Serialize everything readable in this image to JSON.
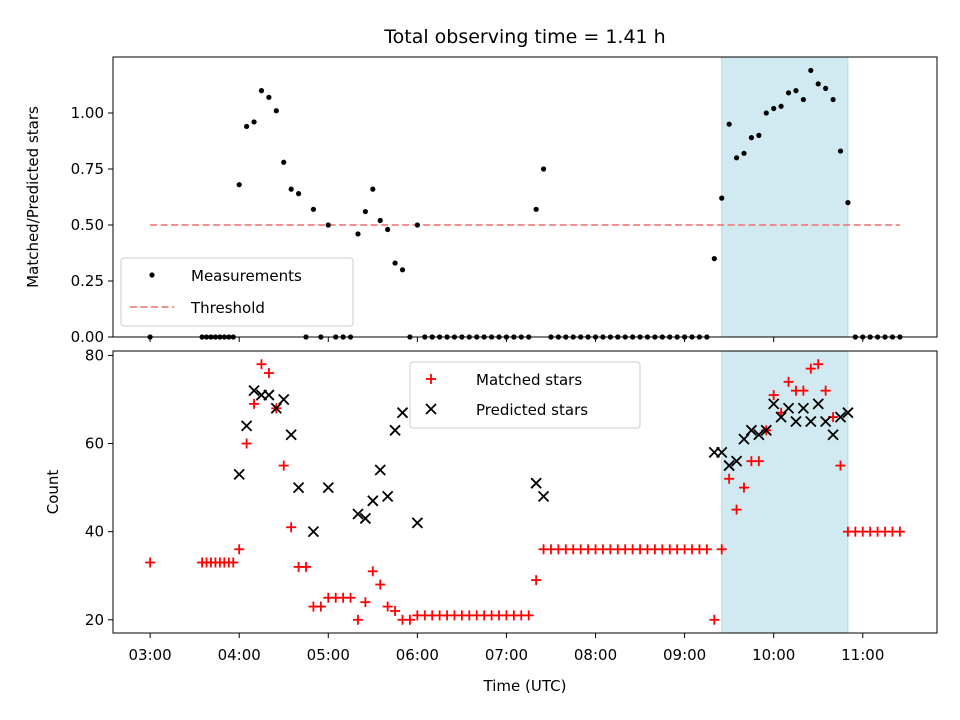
{
  "chart_data": [
    {
      "type": "scatter",
      "title": "Total observing time = 1.41 h",
      "xlabel": "",
      "ylabel": "Matched/Predicted stars",
      "ylim": [
        0,
        1.25
      ],
      "y_ticks": [
        "0.00",
        "0.25",
        "0.50",
        "0.75",
        "1.00"
      ],
      "highlight_span": [
        "09:25",
        "10:50"
      ],
      "highlight_color": "#d1e9f0",
      "legend_position": "lower-left",
      "threshold": {
        "name": "Threshold",
        "value": 0.5,
        "x_range": [
          "03:00",
          "11:25"
        ],
        "color": "#f08080"
      },
      "series": [
        {
          "name": "Measurements",
          "color": "#000000",
          "marker": "dot",
          "points": [
            [
              "03:00",
              0
            ],
            [
              "03:35",
              0
            ],
            [
              "03:38",
              0
            ],
            [
              "03:41",
              0
            ],
            [
              "03:44",
              0
            ],
            [
              "03:47",
              0
            ],
            [
              "03:50",
              0
            ],
            [
              "03:53",
              0
            ],
            [
              "03:56",
              0
            ],
            [
              "04:00",
              0.68
            ],
            [
              "04:05",
              0.94
            ],
            [
              "04:10",
              0.96
            ],
            [
              "04:15",
              1.1
            ],
            [
              "04:20",
              1.07
            ],
            [
              "04:25",
              1.01
            ],
            [
              "04:30",
              0.78
            ],
            [
              "04:35",
              0.66
            ],
            [
              "04:40",
              0.64
            ],
            [
              "04:45",
              0
            ],
            [
              "04:50",
              0.57
            ],
            [
              "04:55",
              0
            ],
            [
              "05:00",
              0.5
            ],
            [
              "05:05",
              0
            ],
            [
              "05:10",
              0
            ],
            [
              "05:15",
              0
            ],
            [
              "05:20",
              0.46
            ],
            [
              "05:25",
              0.56
            ],
            [
              "05:30",
              0.66
            ],
            [
              "05:35",
              0.52
            ],
            [
              "05:40",
              0.48
            ],
            [
              "05:45",
              0.33
            ],
            [
              "05:50",
              0.3
            ],
            [
              "05:55",
              0
            ],
            [
              "06:00",
              0.5
            ],
            [
              "06:05",
              0
            ],
            [
              "06:10",
              0
            ],
            [
              "06:15",
              0
            ],
            [
              "06:20",
              0
            ],
            [
              "06:25",
              0
            ],
            [
              "06:30",
              0
            ],
            [
              "06:35",
              0
            ],
            [
              "06:40",
              0
            ],
            [
              "06:45",
              0
            ],
            [
              "06:50",
              0
            ],
            [
              "06:55",
              0
            ],
            [
              "07:00",
              0
            ],
            [
              "07:05",
              0
            ],
            [
              "07:10",
              0
            ],
            [
              "07:15",
              0
            ],
            [
              "07:20",
              0.57
            ],
            [
              "07:25",
              0.75
            ],
            [
              "07:30",
              0
            ],
            [
              "07:35",
              0
            ],
            [
              "07:40",
              0
            ],
            [
              "07:45",
              0
            ],
            [
              "07:50",
              0
            ],
            [
              "07:55",
              0
            ],
            [
              "08:00",
              0
            ],
            [
              "08:05",
              0
            ],
            [
              "08:10",
              0
            ],
            [
              "08:15",
              0
            ],
            [
              "08:20",
              0
            ],
            [
              "08:25",
              0
            ],
            [
              "08:30",
              0
            ],
            [
              "08:35",
              0
            ],
            [
              "08:40",
              0
            ],
            [
              "08:45",
              0
            ],
            [
              "08:50",
              0
            ],
            [
              "08:55",
              0
            ],
            [
              "09:00",
              0
            ],
            [
              "09:05",
              0
            ],
            [
              "09:10",
              0
            ],
            [
              "09:15",
              0
            ],
            [
              "09:20",
              0.35
            ],
            [
              "09:25",
              0.62
            ],
            [
              "09:30",
              0.95
            ],
            [
              "09:35",
              0.8
            ],
            [
              "09:40",
              0.82
            ],
            [
              "09:45",
              0.89
            ],
            [
              "09:50",
              0.9
            ],
            [
              "09:55",
              1.0
            ],
            [
              "10:00",
              1.02
            ],
            [
              "10:05",
              1.03
            ],
            [
              "10:10",
              1.09
            ],
            [
              "10:15",
              1.1
            ],
            [
              "10:20",
              1.06
            ],
            [
              "10:25",
              1.19
            ],
            [
              "10:30",
              1.13
            ],
            [
              "10:35",
              1.11
            ],
            [
              "10:40",
              1.06
            ],
            [
              "10:45",
              0.83
            ],
            [
              "10:50",
              0.6
            ],
            [
              "10:55",
              0
            ],
            [
              "11:00",
              0
            ],
            [
              "11:05",
              0
            ],
            [
              "11:10",
              0
            ],
            [
              "11:15",
              0
            ],
            [
              "11:20",
              0
            ],
            [
              "11:25",
              0
            ]
          ]
        }
      ]
    },
    {
      "type": "scatter",
      "xlabel": "Time (UTC)",
      "ylabel": "Count",
      "ylim": [
        17,
        81
      ],
      "y_ticks": [
        "20",
        "40",
        "60",
        "80"
      ],
      "x_ticks": [
        "03:00",
        "04:00",
        "05:00",
        "06:00",
        "07:00",
        "08:00",
        "09:00",
        "10:00",
        "11:00"
      ],
      "xlim": [
        "02:35",
        "11:50"
      ],
      "highlight_span": [
        "09:25",
        "10:50"
      ],
      "legend_position": "upper-center",
      "series": [
        {
          "name": "Matched stars",
          "color": "#ff0000",
          "marker": "plus",
          "points": [
            [
              "03:00",
              33
            ],
            [
              "03:35",
              33
            ],
            [
              "03:38",
              33
            ],
            [
              "03:41",
              33
            ],
            [
              "03:44",
              33
            ],
            [
              "03:47",
              33
            ],
            [
              "03:50",
              33
            ],
            [
              "03:53",
              33
            ],
            [
              "03:56",
              33
            ],
            [
              "04:00",
              36
            ],
            [
              "04:05",
              60
            ],
            [
              "04:10",
              69
            ],
            [
              "04:15",
              78
            ],
            [
              "04:20",
              76
            ],
            [
              "04:25",
              68
            ],
            [
              "04:30",
              55
            ],
            [
              "04:35",
              41
            ],
            [
              "04:40",
              32
            ],
            [
              "04:45",
              32
            ],
            [
              "04:50",
              23
            ],
            [
              "04:55",
              23
            ],
            [
              "05:00",
              25
            ],
            [
              "05:05",
              25
            ],
            [
              "05:10",
              25
            ],
            [
              "05:15",
              25
            ],
            [
              "05:20",
              20
            ],
            [
              "05:25",
              24
            ],
            [
              "05:30",
              31
            ],
            [
              "05:35",
              28
            ],
            [
              "05:40",
              23
            ],
            [
              "05:45",
              22
            ],
            [
              "05:50",
              20
            ],
            [
              "05:55",
              20
            ],
            [
              "06:00",
              21
            ],
            [
              "06:05",
              21
            ],
            [
              "06:10",
              21
            ],
            [
              "06:15",
              21
            ],
            [
              "06:20",
              21
            ],
            [
              "06:25",
              21
            ],
            [
              "06:30",
              21
            ],
            [
              "06:35",
              21
            ],
            [
              "06:40",
              21
            ],
            [
              "06:45",
              21
            ],
            [
              "06:50",
              21
            ],
            [
              "06:55",
              21
            ],
            [
              "07:00",
              21
            ],
            [
              "07:05",
              21
            ],
            [
              "07:10",
              21
            ],
            [
              "07:15",
              21
            ],
            [
              "07:20",
              29
            ],
            [
              "07:25",
              36
            ],
            [
              "07:30",
              36
            ],
            [
              "07:35",
              36
            ],
            [
              "07:40",
              36
            ],
            [
              "07:45",
              36
            ],
            [
              "07:50",
              36
            ],
            [
              "07:55",
              36
            ],
            [
              "08:00",
              36
            ],
            [
              "08:05",
              36
            ],
            [
              "08:10",
              36
            ],
            [
              "08:15",
              36
            ],
            [
              "08:20",
              36
            ],
            [
              "08:25",
              36
            ],
            [
              "08:30",
              36
            ],
            [
              "08:35",
              36
            ],
            [
              "08:40",
              36
            ],
            [
              "08:45",
              36
            ],
            [
              "08:50",
              36
            ],
            [
              "08:55",
              36
            ],
            [
              "09:00",
              36
            ],
            [
              "09:05",
              36
            ],
            [
              "09:10",
              36
            ],
            [
              "09:15",
              36
            ],
            [
              "09:20",
              20
            ],
            [
              "09:25",
              36
            ],
            [
              "09:30",
              52
            ],
            [
              "09:35",
              45
            ],
            [
              "09:40",
              50
            ],
            [
              "09:45",
              56
            ],
            [
              "09:50",
              56
            ],
            [
              "09:55",
              63
            ],
            [
              "10:00",
              71
            ],
            [
              "10:05",
              67
            ],
            [
              "10:10",
              74
            ],
            [
              "10:15",
              72
            ],
            [
              "10:20",
              72
            ],
            [
              "10:25",
              77
            ],
            [
              "10:30",
              78
            ],
            [
              "10:35",
              72
            ],
            [
              "10:40",
              66
            ],
            [
              "10:45",
              55
            ],
            [
              "10:50",
              40
            ],
            [
              "10:55",
              40
            ],
            [
              "11:00",
              40
            ],
            [
              "11:05",
              40
            ],
            [
              "11:10",
              40
            ],
            [
              "11:15",
              40
            ],
            [
              "11:20",
              40
            ],
            [
              "11:25",
              40
            ]
          ]
        },
        {
          "name": "Predicted stars",
          "color": "#000000",
          "marker": "x",
          "points": [
            [
              "04:00",
              53
            ],
            [
              "04:05",
              64
            ],
            [
              "04:10",
              72
            ],
            [
              "04:15",
              71
            ],
            [
              "04:20",
              71
            ],
            [
              "04:25",
              68
            ],
            [
              "04:30",
              70
            ],
            [
              "04:35",
              62
            ],
            [
              "04:40",
              50
            ],
            [
              "04:50",
              40
            ],
            [
              "05:00",
              50
            ],
            [
              "05:20",
              44
            ],
            [
              "05:25",
              43
            ],
            [
              "05:30",
              47
            ],
            [
              "05:35",
              54
            ],
            [
              "05:40",
              48
            ],
            [
              "05:45",
              63
            ],
            [
              "05:50",
              67
            ],
            [
              "06:00",
              42
            ],
            [
              "07:20",
              51
            ],
            [
              "07:25",
              48
            ],
            [
              "09:20",
              58
            ],
            [
              "09:25",
              58
            ],
            [
              "09:30",
              55
            ],
            [
              "09:35",
              56
            ],
            [
              "09:40",
              61
            ],
            [
              "09:45",
              63
            ],
            [
              "09:50",
              62
            ],
            [
              "09:55",
              63
            ],
            [
              "10:00",
              69
            ],
            [
              "10:05",
              66
            ],
            [
              "10:10",
              68
            ],
            [
              "10:15",
              65
            ],
            [
              "10:20",
              68
            ],
            [
              "10:25",
              65
            ],
            [
              "10:30",
              69
            ],
            [
              "10:35",
              65
            ],
            [
              "10:40",
              62
            ],
            [
              "10:45",
              66
            ],
            [
              "10:50",
              67
            ]
          ]
        }
      ]
    }
  ]
}
